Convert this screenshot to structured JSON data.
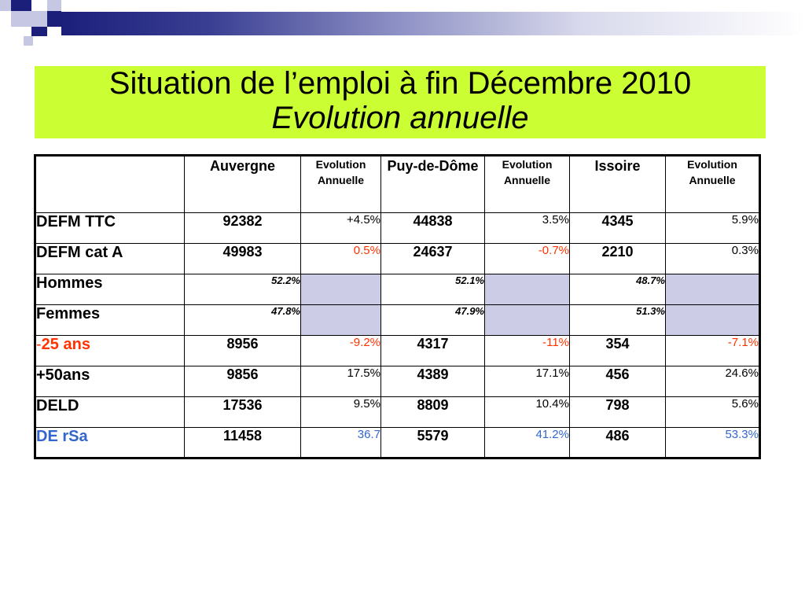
{
  "title": {
    "line1": "Situation de l’emploi à fin Décembre 2010",
    "line2": "Evolution annuelle"
  },
  "colors": {
    "title_background": "#ccff33",
    "shaded_cell": "#cccce6",
    "red_text": "#ff3300",
    "blue_text": "#3366cc",
    "decor_dark": "#1b1f7a",
    "decor_light": "#c5c7e3"
  },
  "table": {
    "headers": [
      "",
      "Auvergne",
      "Evolution Annuelle",
      "Puy-de-Dôme",
      "Evolution Annuelle",
      "Issoire",
      "Evolution Annuelle"
    ],
    "rows": [
      {
        "label": "DEFM TTC",
        "cells": [
          "92382",
          "+4.5%",
          "44838",
          "3.5%",
          "4345",
          "5.9%"
        ]
      },
      {
        "label": "DEFM cat A",
        "cells": [
          "49983",
          "0.5%",
          "24637",
          "-0.7%",
          "2210",
          "0.3%"
        ]
      },
      {
        "label": "Hommes",
        "cells": [
          "52.2%",
          "",
          "52.1%",
          "",
          "48.7%",
          ""
        ]
      },
      {
        "label": "Femmes",
        "cells": [
          "47.8%",
          "",
          "47.9%",
          "",
          "51.3%",
          ""
        ]
      },
      {
        "label_prefix": "-",
        "label": "25 ans",
        "cells": [
          "8956",
          "-9.2%",
          "4317",
          "-11%",
          "354",
          "-7.1%"
        ]
      },
      {
        "label": "+50ans",
        "cells": [
          "9856",
          "17.5%",
          "4389",
          "17.1%",
          "456",
          "24.6%"
        ]
      },
      {
        "label": "DELD",
        "cells": [
          "17536",
          "9.5%",
          "8809",
          "10.4%",
          "798",
          "5.6%"
        ]
      },
      {
        "label": "DE rSa",
        "cells": [
          "11458",
          "36.7",
          "5579",
          "41.2%",
          "486",
          "53.3%"
        ]
      }
    ]
  }
}
